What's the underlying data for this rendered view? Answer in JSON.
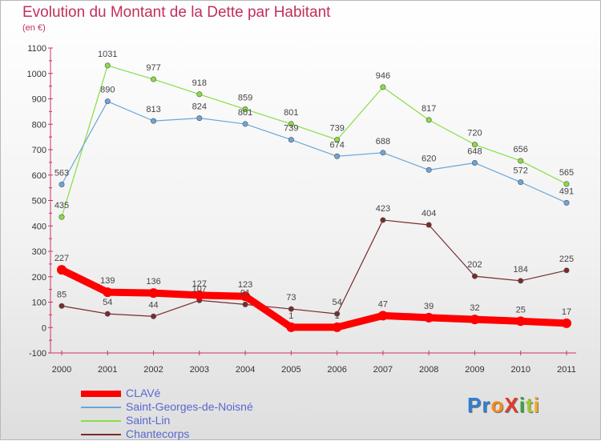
{
  "title": "Evolution du Montant de la Dette par Habitant",
  "subtitle": "(en €)",
  "logo": "ProXiti",
  "chart_data": {
    "type": "line",
    "title": "Evolution du Montant de la Dette par Habitant",
    "ylabel": "(en €)",
    "x": [
      "2000",
      "2001",
      "2002",
      "2003",
      "2004",
      "2005",
      "2006",
      "2007",
      "2008",
      "2009",
      "2010",
      "2011"
    ],
    "ylim": [
      -100,
      1100
    ],
    "yticks": [
      -100,
      0,
      100,
      200,
      300,
      400,
      500,
      600,
      700,
      800,
      900,
      1000,
      1100
    ],
    "grid": false,
    "legend_position": "bottom-left",
    "series": [
      {
        "name": "CLAVé",
        "color": "#ff0000",
        "values": [
          227,
          139,
          136,
          127,
          123,
          1,
          1,
          47,
          39,
          32,
          25,
          17
        ]
      },
      {
        "name": "Saint-Georges-de-Noisné",
        "color": "#6aa6d8",
        "values": [
          563,
          890,
          813,
          824,
          801,
          739,
          674,
          688,
          620,
          648,
          572,
          491
        ]
      },
      {
        "name": "Saint-Lin",
        "color": "#88dd44",
        "values": [
          435,
          1031,
          977,
          918,
          859,
          801,
          739,
          946,
          817,
          720,
          656,
          565
        ]
      },
      {
        "name": "Chantecorps",
        "color": "#7a2b2b",
        "values": [
          85,
          54,
          44,
          107,
          91,
          73,
          54,
          423,
          404,
          202,
          184,
          225
        ]
      }
    ]
  }
}
